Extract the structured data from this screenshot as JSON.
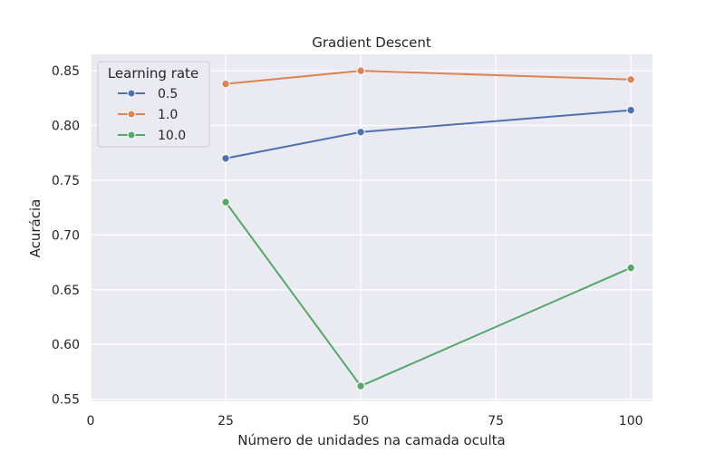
{
  "chart_data": {
    "type": "line",
    "title": "Gradient Descent",
    "xlabel": "Número de unidades na camada oculta",
    "ylabel": "Acurácia",
    "x": [
      25,
      50,
      100
    ],
    "xlim": [
      0,
      104
    ],
    "ylim": [
      0.548,
      0.865
    ],
    "xticks": [
      0,
      25,
      50,
      75,
      100
    ],
    "xtick_labels": [
      "0",
      "25",
      "50",
      "75",
      "100"
    ],
    "yticks": [
      0.55,
      0.6,
      0.65,
      0.7,
      0.75,
      0.8,
      0.85
    ],
    "ytick_labels": [
      "0.55",
      "0.60",
      "0.65",
      "0.70",
      "0.75",
      "0.80",
      "0.85"
    ],
    "grid": true,
    "legend_title": "Learning rate",
    "legend_position": "top-left",
    "series": [
      {
        "name": "0.5",
        "values": [
          0.77,
          0.794,
          0.814
        ],
        "color": "#4c72b0"
      },
      {
        "name": "1.0",
        "values": [
          0.838,
          0.85,
          0.842
        ],
        "color": "#dd8452"
      },
      {
        "name": "10.0",
        "values": [
          0.73,
          0.562,
          0.67
        ],
        "color": "#55a868"
      }
    ],
    "background_color": "#eaeaf2",
    "grid_color": "#ffffff"
  }
}
